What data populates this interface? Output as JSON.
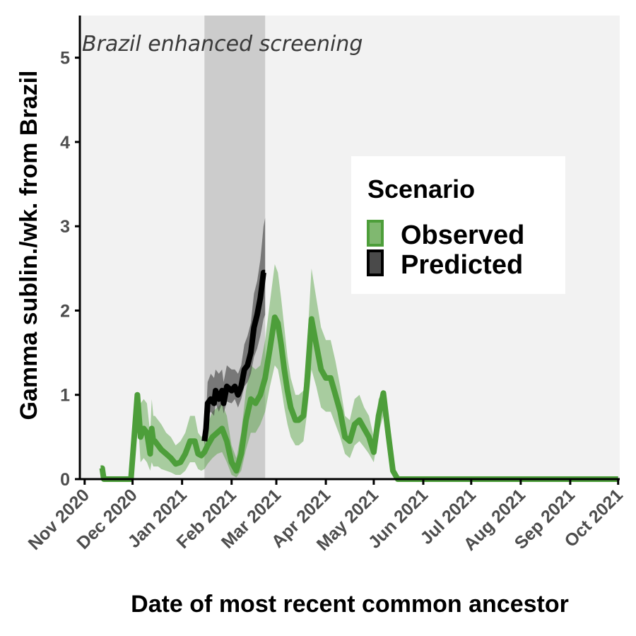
{
  "chart_data": {
    "type": "line",
    "title": "",
    "xlabel": "Date of most recent common ancestor",
    "ylabel": "Gamma sublin./wk. from Brazil",
    "xlim": [
      "2020-10-29",
      "2021-10-02"
    ],
    "ylim": [
      0,
      5.5
    ],
    "x_ticks": [
      "2020-11-01",
      "2020-12-01",
      "2021-01-01",
      "2021-02-01",
      "2021-03-01",
      "2021-04-01",
      "2021-05-01",
      "2021-06-01",
      "2021-07-01",
      "2021-08-01",
      "2021-09-01",
      "2021-10-01"
    ],
    "x_tick_labels": [
      "Nov 2020",
      "Dec 2020",
      "Jan 2021",
      "Feb 2021",
      "Mar 2021",
      "Apr 2021",
      "May 2021",
      "Jun 2021",
      "Jul 2021",
      "Aug 2021",
      "Sep 2021",
      "Oct 2021"
    ],
    "y_ticks": [
      0,
      1,
      2,
      3,
      4,
      5
    ],
    "y_tick_labels": [
      "0",
      "1",
      "2",
      "3",
      "4",
      "5"
    ],
    "grid": false,
    "background": "#f2f2f2",
    "legend": {
      "title": "Scenario",
      "position": "right"
    },
    "shaded_region": {
      "x_start": "2021-01-15",
      "x_end": "2021-02-22",
      "label": "Brazil enhanced screening",
      "color": "#cccccc"
    },
    "series": [
      {
        "name": "Observed",
        "color": "#4d9e3a",
        "band_color": "#4d9e3a",
        "x": [
          "2020-11-11",
          "2020-11-12",
          "2020-11-13",
          "2020-11-14",
          "2020-11-17",
          "2020-11-20",
          "2020-11-24",
          "2020-11-27",
          "2020-11-30",
          "2020-12-02",
          "2020-12-04",
          "2020-12-06",
          "2020-12-08",
          "2020-12-10",
          "2020-12-12",
          "2020-12-13",
          "2020-12-14",
          "2020-12-15",
          "2020-12-17",
          "2020-12-19",
          "2020-12-22",
          "2020-12-25",
          "2020-12-28",
          "2020-12-31",
          "2021-01-03",
          "2021-01-06",
          "2021-01-09",
          "2021-01-11",
          "2021-01-13",
          "2021-01-15",
          "2021-01-17",
          "2021-01-20",
          "2021-01-23",
          "2021-01-26",
          "2021-01-29",
          "2021-02-01",
          "2021-02-04",
          "2021-02-07",
          "2021-02-10",
          "2021-02-13",
          "2021-02-16",
          "2021-02-19",
          "2021-02-22",
          "2021-02-25",
          "2021-02-28",
          "2021-03-02",
          "2021-03-04",
          "2021-03-06",
          "2021-03-08",
          "2021-03-10",
          "2021-03-13",
          "2021-03-15",
          "2021-03-18",
          "2021-03-20",
          "2021-03-23",
          "2021-03-26",
          "2021-03-29",
          "2021-04-01",
          "2021-04-04",
          "2021-04-07",
          "2021-04-10",
          "2021-04-13",
          "2021-04-16",
          "2021-04-19",
          "2021-04-22",
          "2021-04-25",
          "2021-04-28",
          "2021-05-01",
          "2021-05-04",
          "2021-05-07",
          "2021-05-10",
          "2021-05-13",
          "2021-05-16",
          "2021-05-19",
          "2021-05-22",
          "2021-05-25",
          "2021-05-28",
          "2021-05-31",
          "2021-06-01",
          "2021-06-05",
          "2021-06-15",
          "2021-06-30",
          "2021-07-15",
          "2021-07-25",
          "2021-07-28",
          "2021-07-30",
          "2021-08-02",
          "2021-08-05",
          "2021-08-08",
          "2021-08-15",
          "2021-09-01",
          "2021-09-15",
          "2021-10-01"
        ],
        "y": [
          0.13,
          0.13,
          0,
          0,
          0,
          0,
          0,
          0,
          0,
          0.5,
          1.0,
          0.5,
          0.6,
          0.55,
          0.3,
          0.6,
          0.45,
          0.45,
          0.4,
          0.35,
          0.3,
          0.25,
          0.18,
          0.2,
          0.3,
          0.45,
          0.45,
          0.3,
          0.28,
          0.32,
          0.4,
          0.5,
          0.55,
          0.6,
          0.45,
          0.2,
          0.1,
          0.3,
          0.7,
          0.95,
          0.9,
          1.0,
          1.2,
          1.55,
          1.92,
          1.85,
          1.6,
          1.3,
          1.05,
          0.85,
          0.7,
          0.7,
          0.75,
          1.1,
          1.9,
          1.6,
          1.3,
          1.2,
          1.2,
          1.0,
          0.8,
          0.5,
          0.45,
          0.65,
          0.7,
          0.6,
          0.5,
          0.32,
          0.75,
          1.02,
          0.55,
          0.1,
          0,
          0,
          0,
          0,
          0,
          0,
          0,
          0,
          0,
          0,
          0,
          0,
          0,
          0,
          0,
          0,
          0,
          0,
          0,
          0,
          0
        ],
        "lower": [
          0.13,
          0.13,
          0,
          0,
          0,
          0,
          0,
          0,
          0,
          0.35,
          0.8,
          0.2,
          0.25,
          0.2,
          0.1,
          0.2,
          0.15,
          0.15,
          0.15,
          0.12,
          0.1,
          0.08,
          0.05,
          0.05,
          0.1,
          0.2,
          0.2,
          0.12,
          0.1,
          0.12,
          0.18,
          0.25,
          0.3,
          0.32,
          0.2,
          0.05,
          0.02,
          0.1,
          0.35,
          0.55,
          0.55,
          0.65,
          0.8,
          1.1,
          1.35,
          1.3,
          1.1,
          0.85,
          0.65,
          0.5,
          0.4,
          0.4,
          0.45,
          0.75,
          1.3,
          1.1,
          0.85,
          0.8,
          0.8,
          0.65,
          0.5,
          0.3,
          0.25,
          0.4,
          0.45,
          0.38,
          0.3,
          0.2,
          0.55,
          0.75,
          0.3,
          0.05,
          0,
          0,
          0,
          0,
          0,
          0,
          0,
          0,
          0,
          0,
          0,
          0,
          0,
          0,
          0,
          0,
          0,
          0,
          0,
          0,
          0
        ],
        "upper": [
          0.13,
          0.13,
          0,
          0,
          0,
          0,
          0,
          0,
          0,
          0.65,
          1.0,
          0.9,
          0.95,
          0.9,
          0.55,
          0.95,
          0.75,
          0.75,
          0.7,
          0.65,
          0.55,
          0.5,
          0.4,
          0.45,
          0.55,
          0.75,
          0.75,
          0.55,
          0.5,
          0.55,
          0.65,
          0.8,
          0.85,
          0.9,
          0.75,
          0.4,
          0.25,
          0.55,
          1.05,
          1.35,
          1.3,
          1.35,
          1.65,
          2.1,
          2.55,
          2.45,
          2.15,
          1.8,
          1.45,
          1.2,
          1.0,
          1.0,
          1.05,
          1.5,
          2.5,
          2.15,
          1.8,
          1.65,
          1.65,
          1.4,
          1.1,
          0.75,
          0.7,
          0.95,
          1.0,
          0.85,
          0.75,
          0.5,
          0.95,
          1.05,
          0.8,
          0.15,
          0,
          0,
          0,
          0,
          0,
          0,
          0,
          0,
          0,
          0,
          0,
          0,
          0,
          0,
          0,
          0,
          0,
          0,
          0,
          0,
          0
        ]
      },
      {
        "name": "Predicted",
        "color": "#000000",
        "band_color": "#404040",
        "x": [
          "2021-01-15",
          "2021-01-16",
          "2021-01-17",
          "2021-01-19",
          "2021-01-21",
          "2021-01-22",
          "2021-01-24",
          "2021-01-26",
          "2021-01-27",
          "2021-01-29",
          "2021-02-01",
          "2021-02-03",
          "2021-02-05",
          "2021-02-07",
          "2021-02-09",
          "2021-02-11",
          "2021-02-13",
          "2021-02-15",
          "2021-02-17",
          "2021-02-19",
          "2021-02-20",
          "2021-02-21",
          "2021-02-22"
        ],
        "y": [
          0.45,
          0.6,
          0.9,
          0.95,
          0.9,
          1.05,
          0.95,
          1.05,
          0.9,
          1.1,
          1.05,
          1.1,
          1.0,
          1.1,
          1.3,
          1.35,
          1.5,
          1.8,
          1.95,
          2.15,
          2.3,
          2.45,
          2.45
        ],
        "lower": [
          0.4,
          0.5,
          0.75,
          0.8,
          0.75,
          0.9,
          0.8,
          0.9,
          0.78,
          0.92,
          0.9,
          0.95,
          0.85,
          0.95,
          1.1,
          1.15,
          1.25,
          1.45,
          1.55,
          1.7,
          1.8,
          1.9,
          1.95
        ],
        "upper": [
          0.55,
          0.75,
          1.15,
          1.25,
          1.2,
          1.3,
          1.25,
          1.3,
          1.15,
          1.35,
          1.3,
          1.3,
          1.25,
          1.35,
          1.6,
          1.7,
          1.85,
          2.2,
          2.35,
          2.6,
          2.8,
          3.0,
          3.1
        ]
      }
    ]
  }
}
